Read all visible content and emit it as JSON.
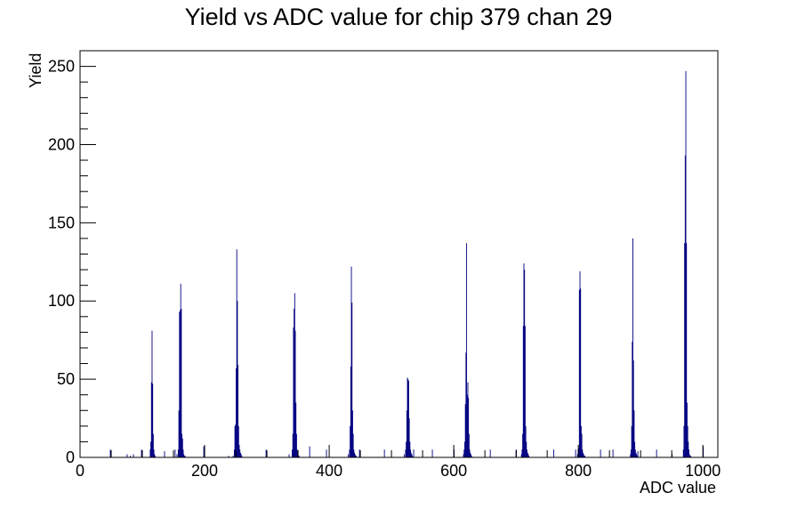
{
  "chart_data": {
    "type": "bar",
    "title": "Yield vs ADC value for chip 379 chan 29",
    "xlabel": "ADC value",
    "ylabel": "Yield",
    "xlim": [
      0,
      1024
    ],
    "ylim": [
      0,
      260
    ],
    "x_ticks": [
      0,
      200,
      400,
      600,
      800,
      1000
    ],
    "y_ticks": [
      0,
      50,
      100,
      150,
      200,
      250
    ],
    "grid": false,
    "legend": "none",
    "bin_width": 1,
    "line_color": "#000080",
    "series": [
      {
        "x": [
          48,
          75,
          80,
          85,
          98,
          112,
          113,
          114,
          115,
          116,
          117,
          118,
          119,
          120,
          135,
          152,
          155,
          157,
          158,
          159,
          160,
          161,
          162,
          163,
          164,
          165,
          166,
          167,
          168,
          198,
          238,
          245,
          247,
          248,
          249,
          250,
          251,
          252,
          253,
          254,
          255,
          256,
          257,
          258,
          259,
          298,
          335,
          340,
          341,
          342,
          343,
          344,
          345,
          346,
          347,
          348,
          349,
          350,
          351,
          368,
          395,
          430,
          432,
          433,
          434,
          435,
          436,
          437,
          438,
          439,
          440,
          441,
          442,
          443,
          448,
          488,
          520,
          522,
          523,
          524,
          525,
          526,
          527,
          528,
          529,
          530,
          531,
          532,
          533,
          535,
          565,
          600,
          615,
          616,
          617,
          618,
          619,
          620,
          621,
          622,
          623,
          624,
          625,
          626,
          627,
          628,
          658,
          700,
          708,
          709,
          710,
          711,
          712,
          713,
          714,
          715,
          716,
          717,
          718,
          719,
          720,
          760,
          795,
          798,
          799,
          800,
          801,
          802,
          803,
          804,
          805,
          806,
          807,
          808,
          809,
          810,
          835,
          855,
          883,
          884,
          885,
          886,
          887,
          888,
          889,
          890,
          891,
          892,
          893,
          894,
          895,
          925,
          950,
          968,
          969,
          970,
          971,
          972,
          973,
          974,
          975,
          976,
          977,
          978,
          979,
          980,
          1000
        ],
        "y": [
          5,
          2,
          1,
          2,
          5,
          5,
          10,
          48,
          81,
          47,
          15,
          5,
          2,
          1,
          4,
          5,
          2,
          5,
          30,
          93,
          94,
          111,
          95,
          15,
          12,
          5,
          2,
          1,
          1,
          7,
          1,
          1,
          5,
          20,
          21,
          57,
          133,
          100,
          59,
          20,
          8,
          5,
          3,
          2,
          1,
          5,
          2,
          5,
          15,
          83,
          95,
          105,
          81,
          35,
          15,
          5,
          2,
          1,
          1,
          7,
          5,
          2,
          5,
          20,
          58,
          122,
          99,
          30,
          15,
          5,
          3,
          2,
          1,
          1,
          5,
          5,
          2,
          5,
          10,
          30,
          51,
          50,
          49,
          25,
          10,
          5,
          3,
          2,
          1,
          5,
          5,
          5,
          2,
          5,
          10,
          34,
          67,
          137,
          40,
          48,
          38,
          15,
          5,
          3,
          2,
          1,
          5,
          5,
          2,
          5,
          15,
          84,
          124,
          120,
          84,
          20,
          10,
          5,
          3,
          2,
          1,
          5,
          5,
          2,
          5,
          6,
          107,
          119,
          108,
          20,
          15,
          5,
          3,
          2,
          1,
          1,
          5,
          5,
          2,
          5,
          20,
          74,
          140,
          62,
          30,
          10,
          5,
          3,
          2,
          1,
          4,
          5,
          2,
          5,
          20,
          137,
          193,
          247,
          137,
          35,
          20,
          10,
          5,
          2,
          1,
          1,
          7
        ]
      }
    ]
  }
}
